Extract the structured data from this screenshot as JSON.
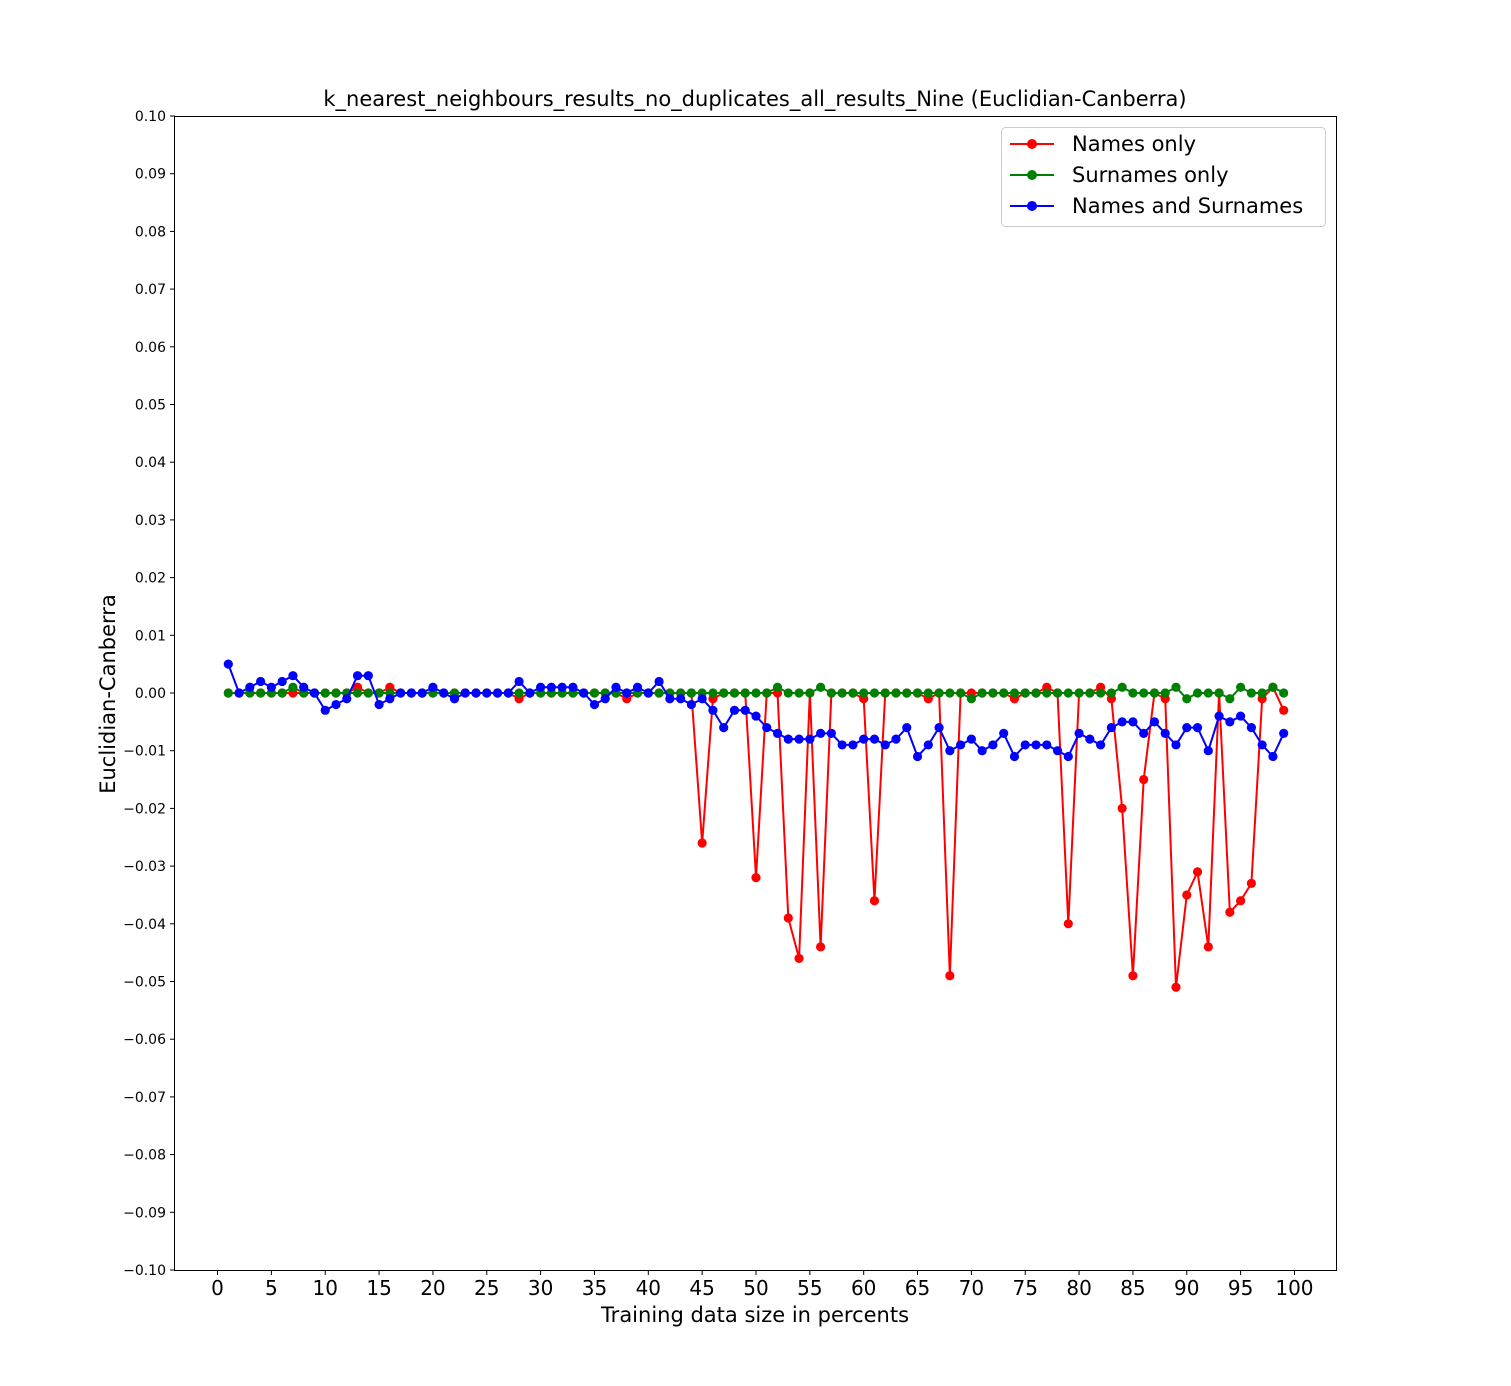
{
  "chart_data": {
    "type": "line",
    "title": "k_nearest_neighbours_results_no_duplicates_all_results_Nine (Euclidian-Canberra)",
    "xlabel": "Training data size in percents",
    "ylabel": "Euclidian-Canberra",
    "xlim": [
      -3.95,
      103.95
    ],
    "ylim": [
      -0.1,
      0.1
    ],
    "grid": false,
    "legend_position": "top-right",
    "xticks": [
      "0",
      "5",
      "10",
      "15",
      "20",
      "25",
      "30",
      "35",
      "40",
      "45",
      "50",
      "55",
      "60",
      "65",
      "70",
      "75",
      "80",
      "85",
      "90",
      "95",
      "100"
    ],
    "xtick_values": [
      0,
      5,
      10,
      15,
      20,
      25,
      30,
      35,
      40,
      45,
      50,
      55,
      60,
      65,
      70,
      75,
      80,
      85,
      90,
      95,
      100
    ],
    "yticks": [
      "0.10",
      "0.09",
      "0.08",
      "0.07",
      "0.06",
      "0.05",
      "0.04",
      "0.03",
      "0.02",
      "0.01",
      "0.00",
      "−0.01",
      "−0.02",
      "−0.03",
      "−0.04",
      "−0.05",
      "−0.06",
      "−0.07",
      "−0.08",
      "−0.09",
      "−0.10"
    ],
    "ytick_values": [
      0.1,
      0.09,
      0.08,
      0.07,
      0.06,
      0.05,
      0.04,
      0.03,
      0.02,
      0.01,
      0.0,
      -0.01,
      -0.02,
      -0.03,
      -0.04,
      -0.05,
      -0.06,
      -0.07,
      -0.08,
      -0.09,
      -0.1
    ],
    "x": [
      1,
      2,
      3,
      4,
      5,
      6,
      7,
      8,
      9,
      10,
      11,
      12,
      13,
      14,
      15,
      16,
      17,
      18,
      19,
      20,
      21,
      22,
      23,
      24,
      25,
      26,
      27,
      28,
      29,
      30,
      31,
      32,
      33,
      34,
      35,
      36,
      37,
      38,
      39,
      40,
      41,
      42,
      43,
      44,
      45,
      46,
      47,
      48,
      49,
      50,
      51,
      52,
      53,
      54,
      55,
      56,
      57,
      58,
      59,
      60,
      61,
      62,
      63,
      64,
      65,
      66,
      67,
      68,
      69,
      70,
      71,
      72,
      73,
      74,
      75,
      76,
      77,
      78,
      79,
      80,
      81,
      82,
      83,
      84,
      85,
      86,
      87,
      88,
      89,
      90,
      91,
      92,
      93,
      94,
      95,
      96,
      97,
      98,
      99
    ],
    "series": [
      {
        "name": "Names only",
        "color": "#ff0000",
        "values": [
          0,
          0,
          0,
          0,
          0,
          0,
          0,
          0,
          0,
          0,
          0,
          0,
          0.001,
          0,
          0,
          0.001,
          0,
          0,
          0,
          0,
          0,
          0,
          0,
          0,
          0,
          0,
          0,
          -0.001,
          0,
          0,
          0,
          0,
          0,
          0,
          0,
          0,
          0,
          -0.001,
          0,
          0,
          0,
          0,
          0,
          0,
          -0.026,
          -0.001,
          0,
          0,
          0,
          -0.032,
          0,
          0,
          -0.039,
          -0.046,
          0,
          -0.044,
          0,
          0,
          0,
          -0.001,
          -0.036,
          0,
          0,
          0,
          0,
          -0.001,
          0,
          -0.049,
          0,
          0,
          0,
          0,
          0,
          -0.001,
          0,
          0,
          0.001,
          0,
          -0.04,
          0,
          0,
          0.001,
          -0.001,
          -0.02,
          -0.049,
          -0.015,
          0,
          -0.001,
          -0.051,
          -0.035,
          -0.031,
          -0.044,
          0,
          -0.038,
          -0.036,
          -0.033,
          -0.001,
          0.001,
          -0.003
        ]
      },
      {
        "name": "Surnames only",
        "color": "#008000",
        "values": [
          0,
          0,
          0,
          0,
          0,
          0,
          0.001,
          0,
          0,
          0,
          0,
          0,
          0,
          0,
          0,
          0,
          0,
          0,
          0,
          0,
          0,
          0,
          0,
          0,
          0,
          0,
          0,
          0,
          0,
          0,
          0,
          0,
          0,
          0,
          0,
          0,
          0,
          0,
          0,
          0,
          0,
          0,
          0,
          0,
          0,
          0,
          0,
          0,
          0,
          0,
          0,
          0.001,
          0,
          0,
          0,
          0.001,
          0,
          0,
          0,
          0,
          0,
          0,
          0,
          0,
          0,
          0,
          0,
          0,
          0,
          -0.001,
          0,
          0,
          0,
          0,
          0,
          0,
          0,
          0,
          0,
          0,
          0,
          0,
          0,
          0.001,
          0,
          0,
          0,
          0,
          0.001,
          -0.001,
          0,
          0,
          0,
          -0.001,
          0.001,
          0,
          0,
          0.001,
          0
        ]
      },
      {
        "name": "Names and Surnames",
        "color": "#0000ff",
        "values": [
          0.005,
          0,
          0.001,
          0.002,
          0.001,
          0.002,
          0.003,
          0.001,
          0,
          -0.003,
          -0.002,
          -0.001,
          0.003,
          0.003,
          -0.002,
          -0.001,
          0,
          0,
          0,
          0.001,
          0,
          -0.001,
          0,
          0,
          0,
          0,
          0,
          0.002,
          0,
          0.001,
          0.001,
          0.001,
          0.001,
          0,
          -0.002,
          -0.001,
          0.001,
          0,
          0.001,
          0,
          0.002,
          -0.001,
          -0.001,
          -0.002,
          -0.001,
          -0.003,
          -0.006,
          -0.003,
          -0.003,
          -0.004,
          -0.006,
          -0.007,
          -0.008,
          -0.008,
          -0.008,
          -0.007,
          -0.007,
          -0.009,
          -0.009,
          -0.008,
          -0.008,
          -0.009,
          -0.008,
          -0.006,
          -0.011,
          -0.009,
          -0.006,
          -0.01,
          -0.009,
          -0.008,
          -0.01,
          -0.009,
          -0.007,
          -0.011,
          -0.009,
          -0.009,
          -0.009,
          -0.01,
          -0.011,
          -0.007,
          -0.008,
          -0.009,
          -0.006,
          -0.005,
          -0.005,
          -0.007,
          -0.005,
          -0.007,
          -0.009,
          -0.006,
          -0.006,
          -0.01,
          -0.004,
          -0.005,
          -0.004,
          -0.006,
          -0.009,
          -0.011,
          -0.007
        ]
      }
    ]
  }
}
